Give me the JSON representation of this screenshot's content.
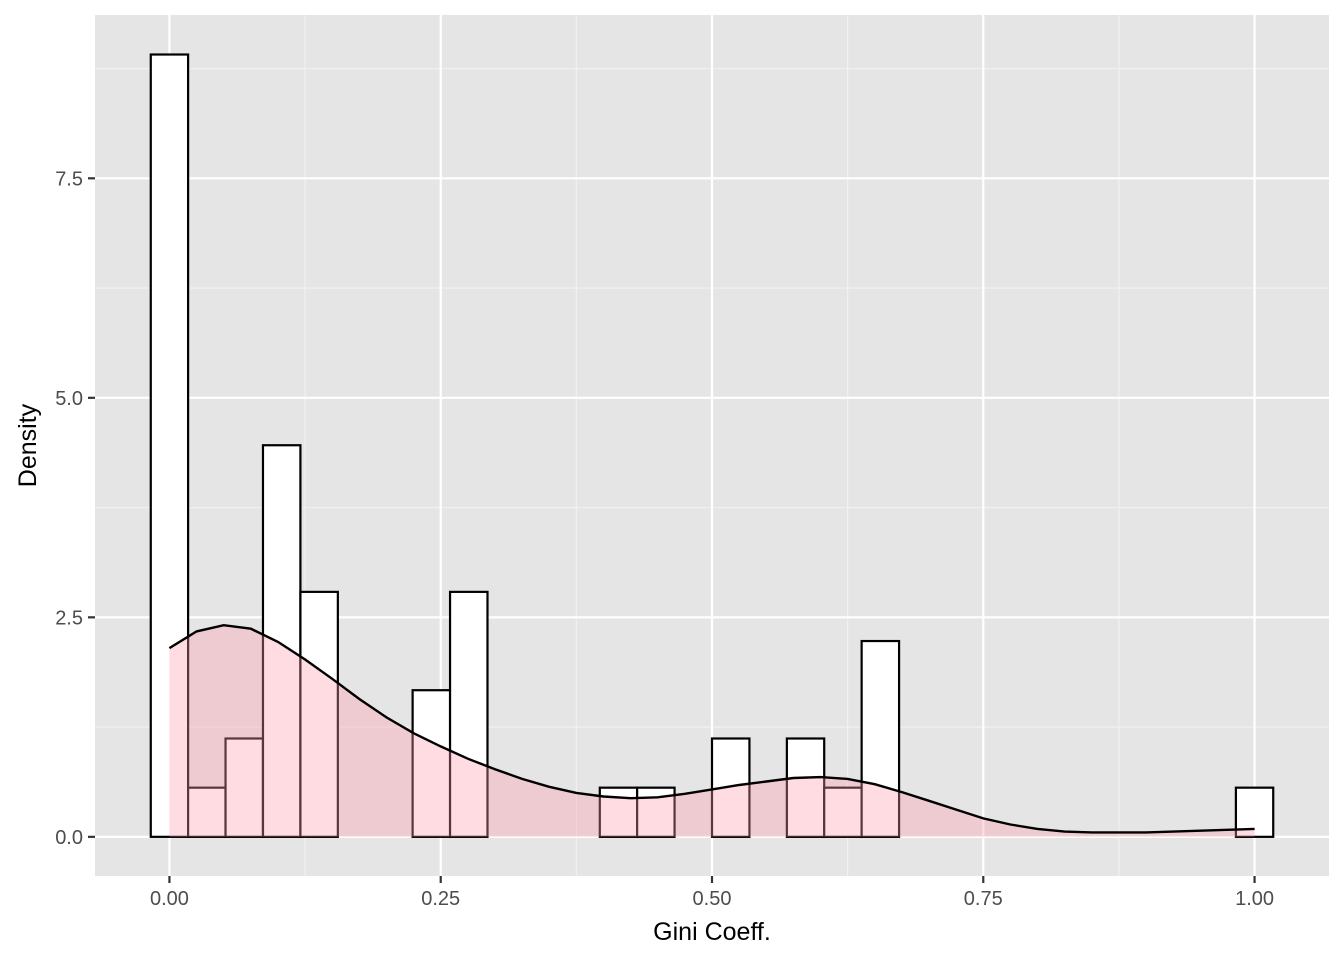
{
  "chart_data": {
    "type": "bar",
    "title": "",
    "xlabel": "Gini Coeff.",
    "ylabel": "Density",
    "xlim": [
      -0.0686,
      1.0686
    ],
    "ylim": [
      -0.446,
      9.36
    ],
    "grid": true,
    "legend": "none",
    "x_ticks": [
      {
        "value": 0.0,
        "label": "0.00"
      },
      {
        "value": 0.25,
        "label": "0.25"
      },
      {
        "value": 0.5,
        "label": "0.50"
      },
      {
        "value": 0.75,
        "label": "0.75"
      },
      {
        "value": 1.0,
        "label": "1.00"
      }
    ],
    "y_ticks": [
      {
        "value": 0.0,
        "label": "0.0"
      },
      {
        "value": 2.5,
        "label": "2.5"
      },
      {
        "value": 5.0,
        "label": "5.0"
      },
      {
        "value": 7.5,
        "label": "7.5"
      }
    ],
    "histogram": {
      "name": "",
      "fill": "#ffffff",
      "stroke": "#000000",
      "bins": [
        {
          "x0": -0.0172,
          "x1": 0.0172,
          "density": 8.91
        },
        {
          "x0": 0.0172,
          "x1": 0.0517,
          "density": 0.56
        },
        {
          "x0": 0.0517,
          "x1": 0.0862,
          "density": 1.12
        },
        {
          "x0": 0.0862,
          "x1": 0.1207,
          "density": 4.46
        },
        {
          "x0": 0.1207,
          "x1": 0.1552,
          "density": 2.79
        },
        {
          "x0": 0.2241,
          "x1": 0.2586,
          "density": 1.67
        },
        {
          "x0": 0.2586,
          "x1": 0.2931,
          "density": 2.79
        },
        {
          "x0": 0.3966,
          "x1": 0.431,
          "density": 0.56
        },
        {
          "x0": 0.431,
          "x1": 0.4655,
          "density": 0.56
        },
        {
          "x0": 0.5,
          "x1": 0.5345,
          "density": 1.12
        },
        {
          "x0": 0.569,
          "x1": 0.6034,
          "density": 1.12
        },
        {
          "x0": 0.6034,
          "x1": 0.6379,
          "density": 0.56
        },
        {
          "x0": 0.6379,
          "x1": 0.6724,
          "density": 2.23
        },
        {
          "x0": 0.9828,
          "x1": 1.0172,
          "density": 0.56
        }
      ]
    },
    "density": {
      "name": "",
      "fill": "#ff9aab",
      "fill_opacity": 0.35,
      "stroke": "#000000",
      "x": [
        0.0,
        0.025,
        0.05,
        0.075,
        0.1,
        0.125,
        0.15,
        0.175,
        0.2,
        0.225,
        0.25,
        0.275,
        0.3,
        0.325,
        0.35,
        0.375,
        0.4,
        0.425,
        0.45,
        0.475,
        0.5,
        0.525,
        0.55,
        0.575,
        0.6,
        0.625,
        0.65,
        0.675,
        0.7,
        0.725,
        0.75,
        0.775,
        0.8,
        0.825,
        0.85,
        0.875,
        0.9,
        0.925,
        0.95,
        0.975,
        1.0
      ],
      "y": [
        2.15,
        2.34,
        2.41,
        2.37,
        2.22,
        2.02,
        1.8,
        1.57,
        1.36,
        1.18,
        1.03,
        0.89,
        0.77,
        0.66,
        0.57,
        0.5,
        0.46,
        0.44,
        0.45,
        0.49,
        0.54,
        0.59,
        0.63,
        0.67,
        0.68,
        0.66,
        0.6,
        0.51,
        0.41,
        0.31,
        0.21,
        0.14,
        0.09,
        0.06,
        0.05,
        0.05,
        0.05,
        0.06,
        0.07,
        0.08,
        0.09
      ]
    }
  }
}
